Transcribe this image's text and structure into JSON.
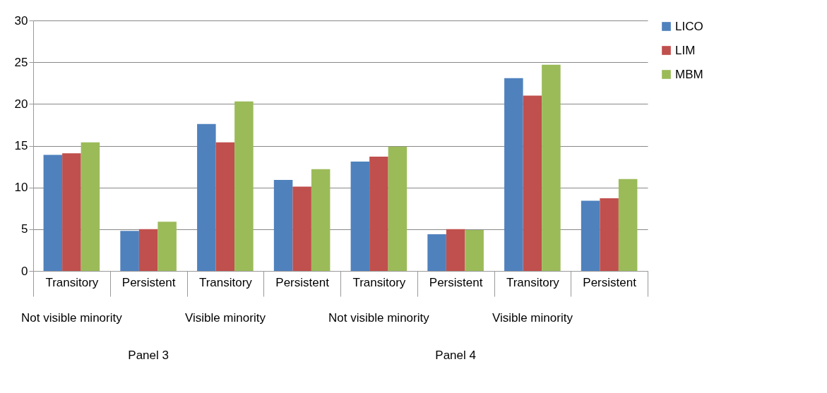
{
  "chart_data": {
    "type": "bar",
    "categories": [
      "Transitory",
      "Persistent",
      "Transitory",
      "Persistent",
      "Transitory",
      "Persistent",
      "Transitory",
      "Persistent"
    ],
    "series": [
      {
        "name": "LICO",
        "color": "#4f81bd",
        "values": [
          13.9,
          4.8,
          17.6,
          10.9,
          13.1,
          4.4,
          23.1,
          8.4
        ]
      },
      {
        "name": "LIM",
        "color": "#c0504d",
        "values": [
          14.1,
          5.0,
          15.4,
          10.1,
          13.7,
          5.0,
          21.0,
          8.7
        ]
      },
      {
        "name": "MBM",
        "color": "#9bbb59",
        "values": [
          15.4,
          5.9,
          20.3,
          12.2,
          14.9,
          4.9,
          24.7,
          11.0
        ]
      }
    ],
    "annotations": [
      "Not visible minority",
      "Visible minority",
      "Not visible minority",
      "Visible minority",
      "Panel 3",
      "Panel 4"
    ],
    "ylim": [
      0,
      30
    ],
    "yticks": [
      0,
      5,
      10,
      15,
      20,
      25,
      30
    ],
    "grid": "y",
    "legend": "right"
  }
}
